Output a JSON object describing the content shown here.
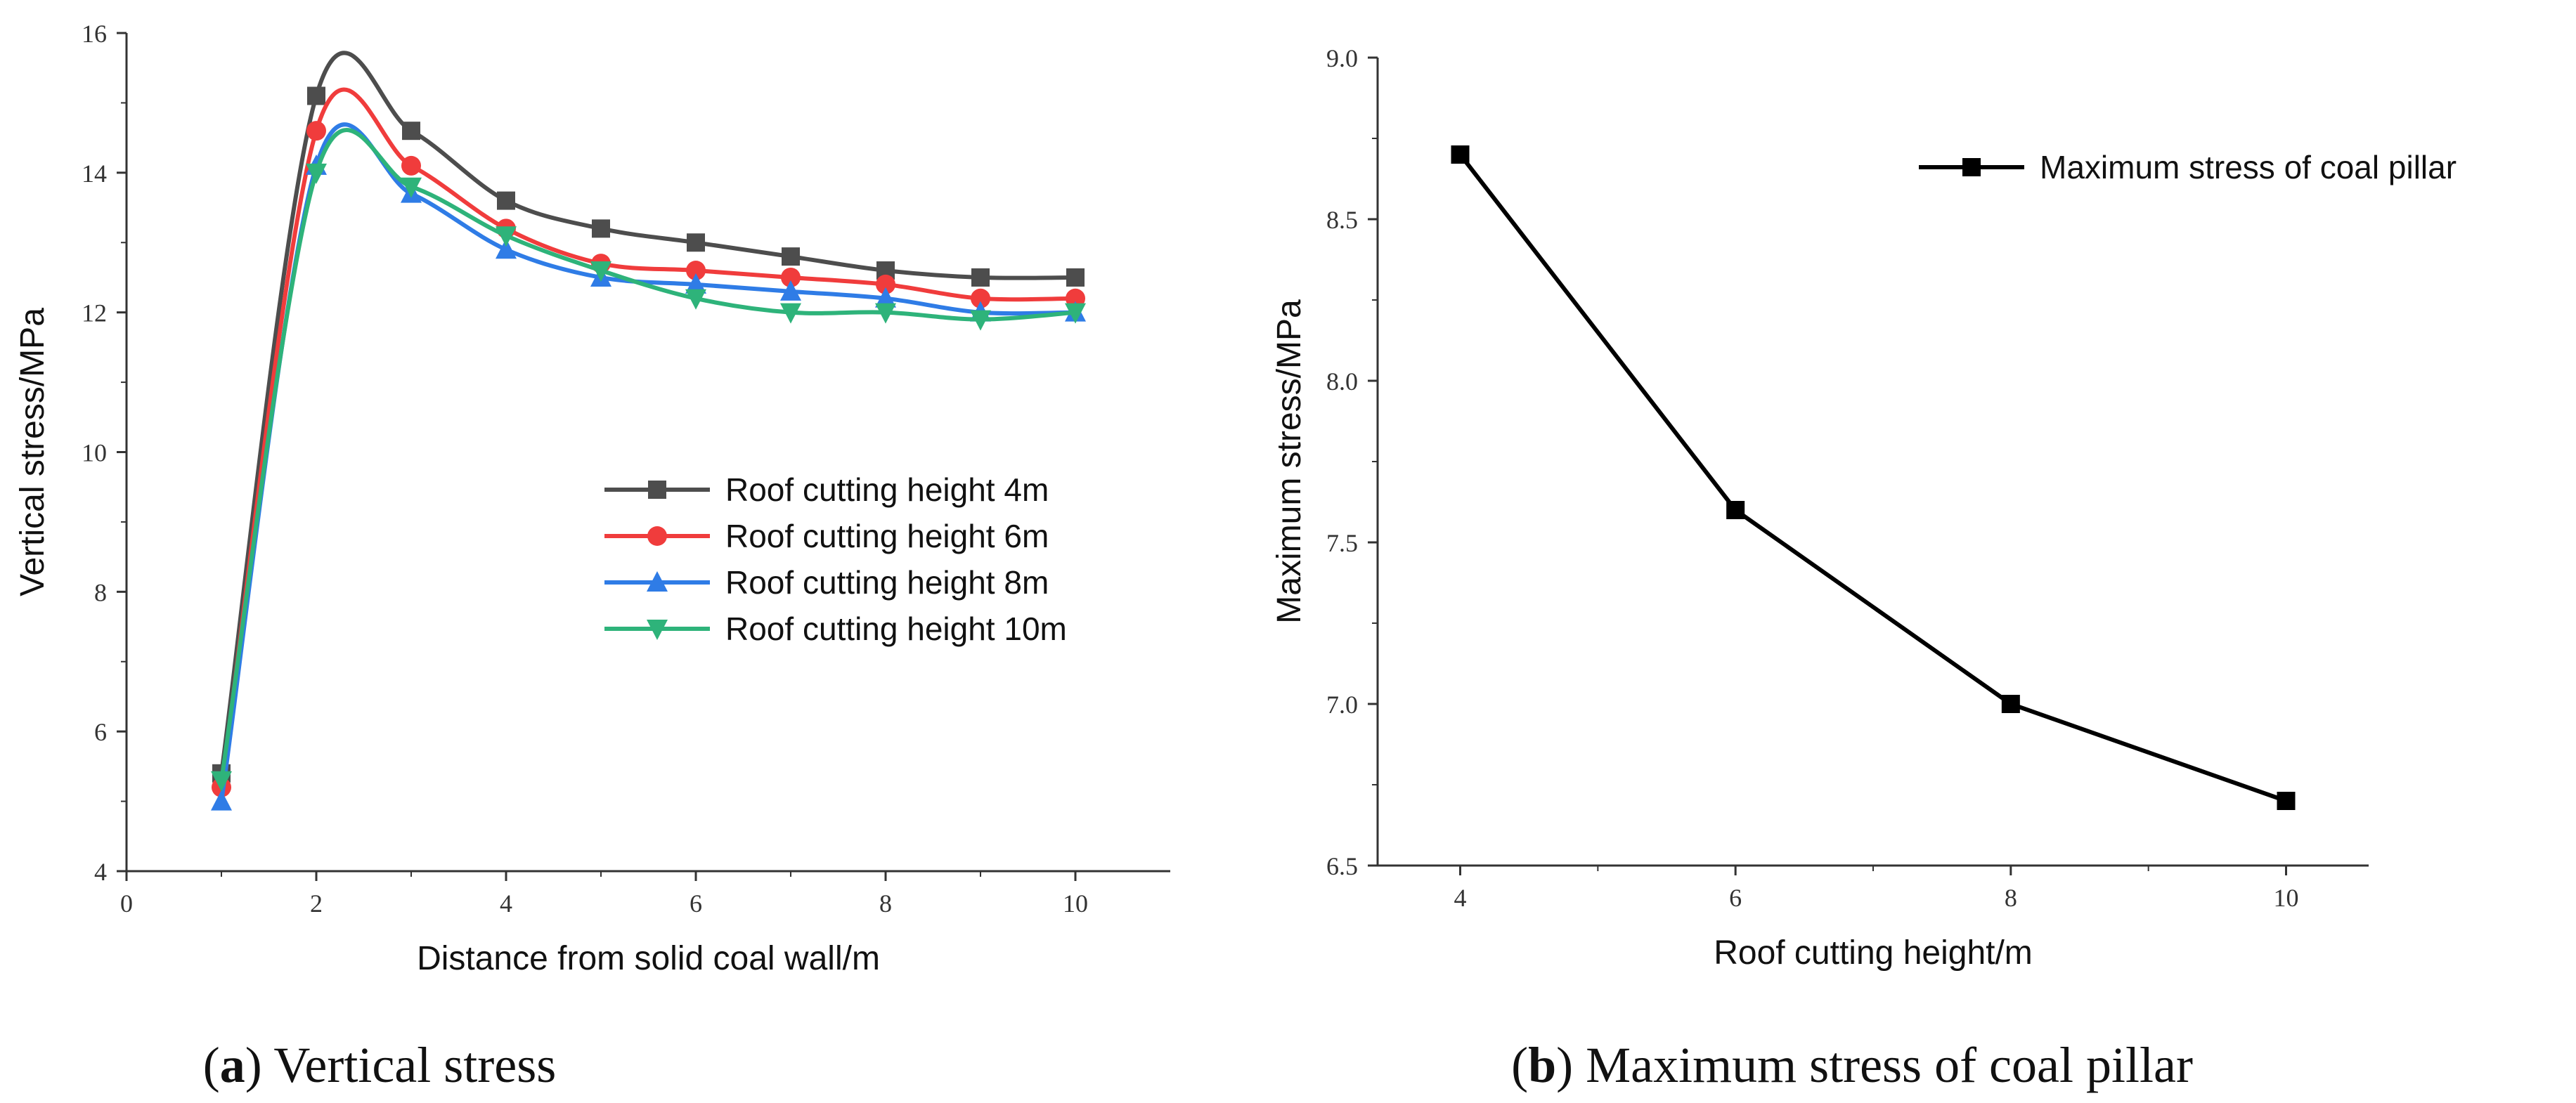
{
  "chart_data": [
    {
      "type": "line",
      "panel": "a",
      "caption_letter": "a",
      "caption_text": "Vertical stress",
      "title": "",
      "xlabel": "Distance from solid coal wall/m",
      "ylabel": "Vertical stress/MPa",
      "xlim": [
        0,
        11
      ],
      "ylim": [
        4,
        16
      ],
      "xticks": [
        0,
        2,
        4,
        6,
        8,
        10
      ],
      "yticks": [
        4,
        6,
        8,
        10,
        12,
        14,
        16
      ],
      "smooth": true,
      "legend_position": "center-right",
      "x": [
        1,
        2,
        3,
        4,
        5,
        6,
        7,
        8,
        9,
        10
      ],
      "series": [
        {
          "name": "Roof cutting height 4m",
          "color": "#4d4d4d",
          "marker": "square",
          "values": [
            5.4,
            15.1,
            14.6,
            13.6,
            13.2,
            13.0,
            12.8,
            12.6,
            12.5,
            12.5
          ]
        },
        {
          "name": "Roof cutting height 6m",
          "color": "#f03c3c",
          "marker": "circle",
          "values": [
            5.2,
            14.6,
            14.1,
            13.2,
            12.7,
            12.6,
            12.5,
            12.4,
            12.2,
            12.2
          ]
        },
        {
          "name": "Roof cutting height 8m",
          "color": "#2f7ce6",
          "marker": "triangle-up",
          "values": [
            5.0,
            14.1,
            13.7,
            12.9,
            12.5,
            12.4,
            12.3,
            12.2,
            12.0,
            12.0
          ]
        },
        {
          "name": "Roof cutting height 10m",
          "color": "#2eb37a",
          "marker": "triangle-down",
          "values": [
            5.3,
            14.0,
            13.8,
            13.1,
            12.6,
            12.2,
            12.0,
            12.0,
            11.9,
            12.0
          ]
        }
      ]
    },
    {
      "type": "line",
      "panel": "b",
      "caption_letter": "b",
      "caption_text": "Maximum stress of coal pillar",
      "title": "",
      "xlabel": "Roof cutting height/m",
      "ylabel": "Maximum stress/MPa",
      "xlim": [
        3.4,
        10.6
      ],
      "ylim": [
        6.5,
        9.0
      ],
      "xticks": [
        4,
        6,
        8,
        10
      ],
      "yticks": [
        "6.5",
        "7.0",
        "7.5",
        "8.0",
        "8.5",
        "9.0"
      ],
      "smooth": false,
      "legend_position": "top-right",
      "x": [
        4,
        6,
        8,
        10
      ],
      "series": [
        {
          "name": "Maximum stress of coal pillar",
          "color": "#000000",
          "marker": "square",
          "values": [
            8.7,
            7.6,
            7.0,
            6.7
          ]
        }
      ]
    }
  ]
}
